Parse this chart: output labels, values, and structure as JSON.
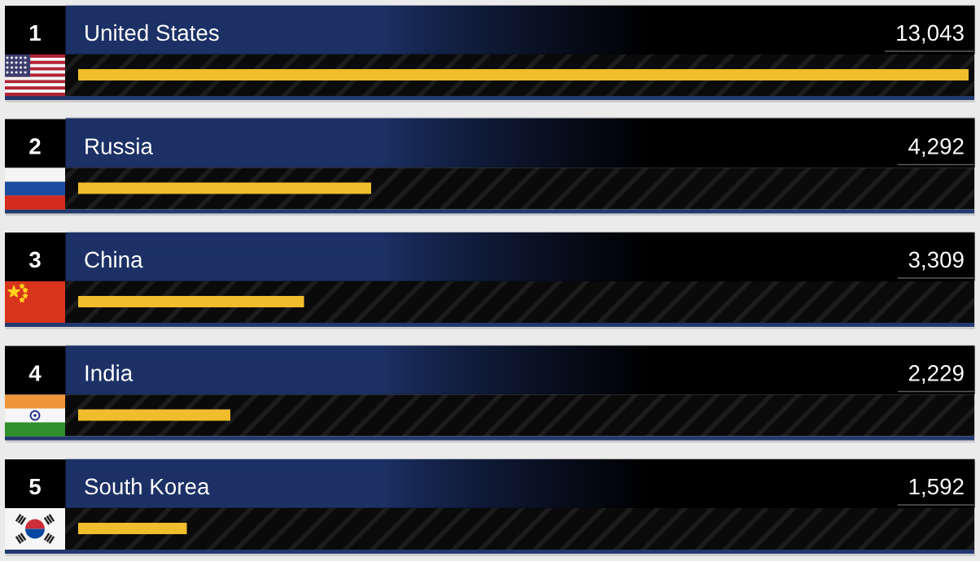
{
  "chart_data": {
    "type": "bar",
    "orientation": "horizontal",
    "categories": [
      "United States",
      "Russia",
      "China",
      "India",
      "South Korea"
    ],
    "values": [
      13043,
      4292,
      3309,
      2229,
      1592
    ],
    "value_labels": [
      "13,043",
      "4,292",
      "3,309",
      "2,229",
      "1,592"
    ],
    "color": "#f0be2c",
    "annotations": [
      "1",
      "2",
      "3",
      "4",
      "5"
    ]
  }
}
